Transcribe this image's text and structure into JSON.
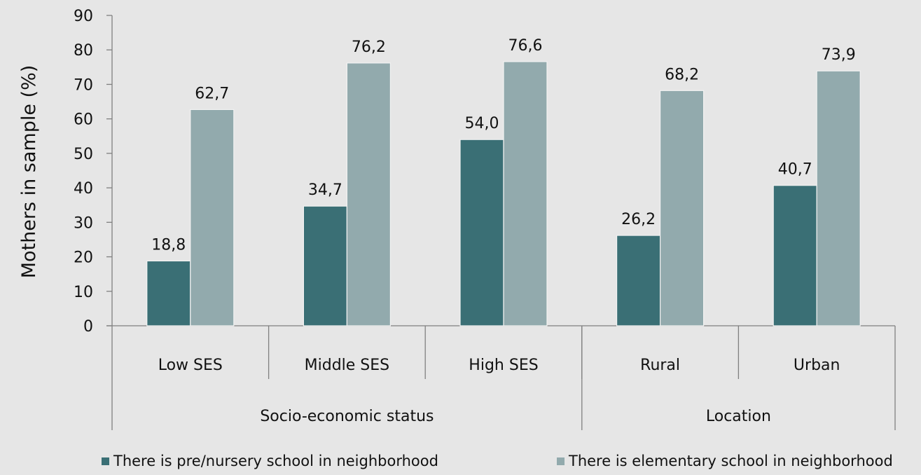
{
  "chart_data": {
    "type": "bar",
    "ylabel": "Mothers  in sample (%)",
    "ylim": [
      0,
      90
    ],
    "yticks": [
      0,
      10,
      20,
      30,
      40,
      50,
      60,
      70,
      80,
      90
    ],
    "categories": [
      "Low SES",
      "Middle SES",
      "High SES",
      "Rural",
      "Urban"
    ],
    "groups": [
      {
        "label": "Socio-economic status",
        "categories": [
          "Low SES",
          "Middle SES",
          "High SES"
        ]
      },
      {
        "label": "Location",
        "categories": [
          "Rural",
          "Urban"
        ]
      }
    ],
    "series": [
      {
        "name": "There is pre/nursery school in neighborhood",
        "color": "#3a6f75",
        "values": [
          18.8,
          34.7,
          54.0,
          26.2,
          40.7
        ],
        "labels": [
          "18,8",
          "34,7",
          "54,0",
          "26,2",
          "40,7"
        ]
      },
      {
        "name": "There is elementary school in neighborhood",
        "color": "#92aaad",
        "values": [
          62.7,
          76.2,
          76.6,
          68.2,
          73.9
        ],
        "labels": [
          "62,7",
          "76,2",
          "76,6",
          "68,2",
          "73,9"
        ]
      }
    ],
    "legend_position": "bottom",
    "grid": false
  }
}
